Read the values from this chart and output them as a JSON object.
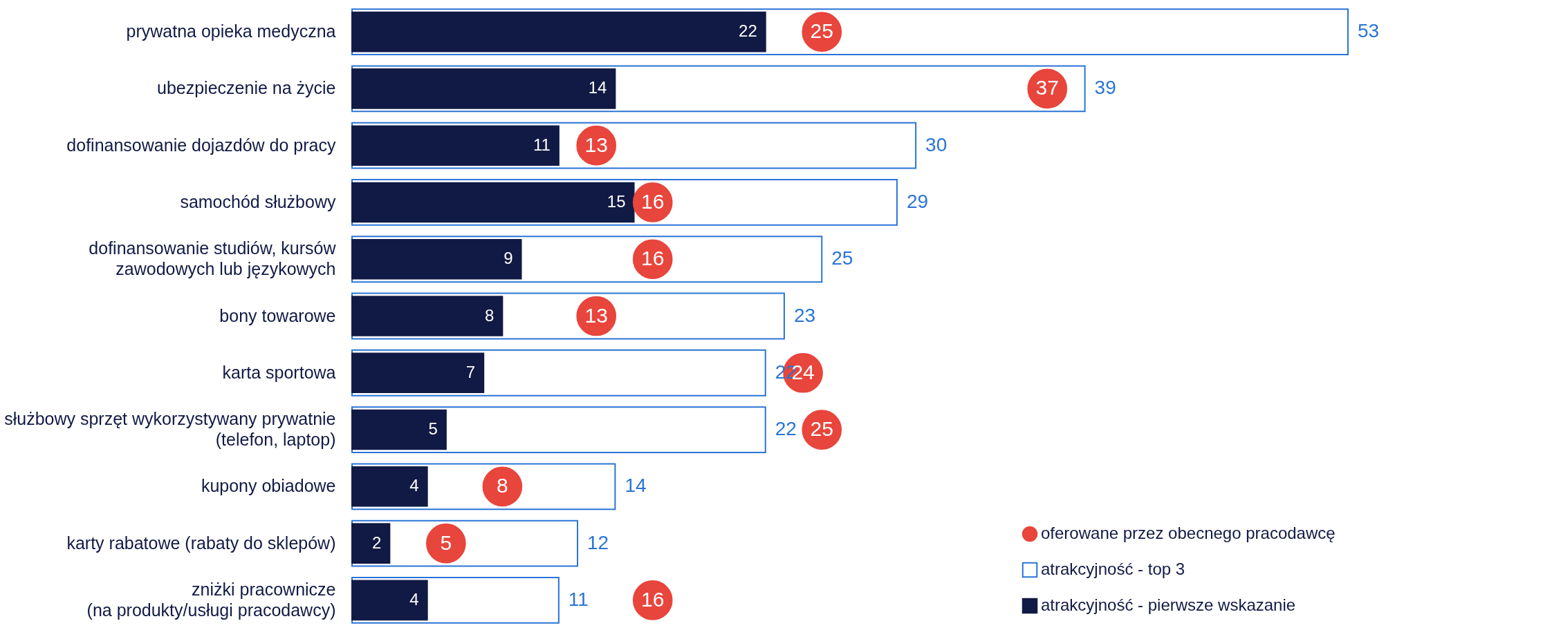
{
  "chart_data": {
    "type": "bar",
    "orientation": "horizontal",
    "data_labels": true,
    "legend": "bottom right",
    "categories": [
      "prywatna opieka medyczna",
      "ubezpieczenie na życie",
      "dofinansowanie dojazdów do pracy",
      "samochód służbowy",
      "dofinansowanie studiów, kursów\nzawodowych lub językowych",
      "bony towarowe",
      "karta sportowa",
      "służbowy sprzęt wykorzystywany prywatnie\n(telefon, laptop)",
      "kupony obiadowe",
      "karty rabatowe (rabaty do sklepów)",
      "zniżki pracownicze\n(na produkty/usługi pracodawcy)"
    ],
    "series": [
      {
        "name": "oferowane przez obecnego pracodawcę",
        "type": "scatter",
        "marker": "circle",
        "color": "#e8453c",
        "values": [
          25,
          37,
          13,
          16,
          16,
          13,
          24,
          25,
          8,
          5,
          16
        ]
      },
      {
        "name": "atrakcyjność - top 3",
        "color": "#2a74d6",
        "values": [
          53,
          39,
          30,
          29,
          25,
          23,
          22,
          22,
          14,
          12,
          11
        ]
      },
      {
        "name": "atrakcyjność - pierwsze wskazanie",
        "color": "#111a45",
        "values": [
          22,
          14,
          11,
          15,
          9,
          8,
          7,
          5,
          4,
          2,
          4
        ]
      }
    ]
  }
}
